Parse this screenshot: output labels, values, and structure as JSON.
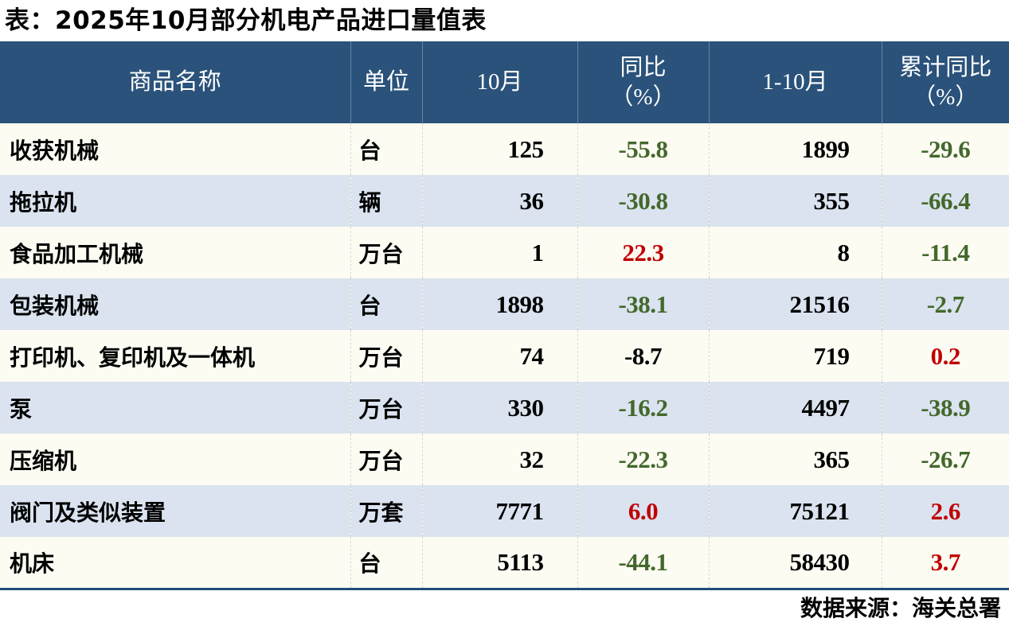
{
  "title": "表：2025年10月部分机电产品进口量值表",
  "source_note": "数据来源：海关总署",
  "colors": {
    "header_bg": "#2A527A",
    "header_text": "#FFFFFF",
    "row_cream": "#FDFCF3",
    "row_alt": "#DAE3EF",
    "green": "#44682C",
    "red": "#C00000",
    "ink": "#000000",
    "bottom_line": "#1F4E79"
  },
  "table": {
    "headers": [
      {
        "label": "商品名称",
        "sub": ""
      },
      {
        "label": "单位",
        "sub": ""
      },
      {
        "label": "10月",
        "sub": ""
      },
      {
        "label": "同比",
        "sub": "（%）"
      },
      {
        "label": "1-10月",
        "sub": ""
      },
      {
        "label": "累计同比",
        "sub": "（%）"
      }
    ],
    "rows": [
      {
        "name": "收获机械",
        "unit": "台",
        "oct": "125",
        "yoy": "-55.8",
        "yoy_color": "green",
        "jan_oct": "1899",
        "cum_yoy": "-29.6",
        "cum_color": "green"
      },
      {
        "name": "拖拉机",
        "unit": "辆",
        "oct": "36",
        "yoy": "-30.8",
        "yoy_color": "green",
        "jan_oct": "355",
        "cum_yoy": "-66.4",
        "cum_color": "green"
      },
      {
        "name": "食品加工机械",
        "unit": "万台",
        "oct": "1",
        "yoy": "22.3",
        "yoy_color": "red",
        "jan_oct": "8",
        "cum_yoy": "-11.4",
        "cum_color": "green"
      },
      {
        "name": "包装机械",
        "unit": "台",
        "oct": "1898",
        "yoy": "-38.1",
        "yoy_color": "green",
        "jan_oct": "21516",
        "cum_yoy": "-2.7",
        "cum_color": "green"
      },
      {
        "name": "打印机、复印机及一体机",
        "unit": "万台",
        "oct": "74",
        "yoy": "-8.7",
        "yoy_color": "black",
        "jan_oct": "719",
        "cum_yoy": "0.2",
        "cum_color": "red"
      },
      {
        "name": "泵",
        "unit": "万台",
        "oct": "330",
        "yoy": "-16.2",
        "yoy_color": "green",
        "jan_oct": "4497",
        "cum_yoy": "-38.9",
        "cum_color": "green"
      },
      {
        "name": "压缩机",
        "unit": "万台",
        "oct": "32",
        "yoy": "-22.3",
        "yoy_color": "green",
        "jan_oct": "365",
        "cum_yoy": "-26.7",
        "cum_color": "green"
      },
      {
        "name": "阀门及类似装置",
        "unit": "万套",
        "oct": "7771",
        "yoy": "6.0",
        "yoy_color": "red",
        "jan_oct": "75121",
        "cum_yoy": "2.6",
        "cum_color": "red"
      },
      {
        "name": "机床",
        "unit": "台",
        "oct": "5113",
        "yoy": "-44.1",
        "yoy_color": "green",
        "jan_oct": "58430",
        "cum_yoy": "3.7",
        "cum_color": "red"
      }
    ]
  }
}
